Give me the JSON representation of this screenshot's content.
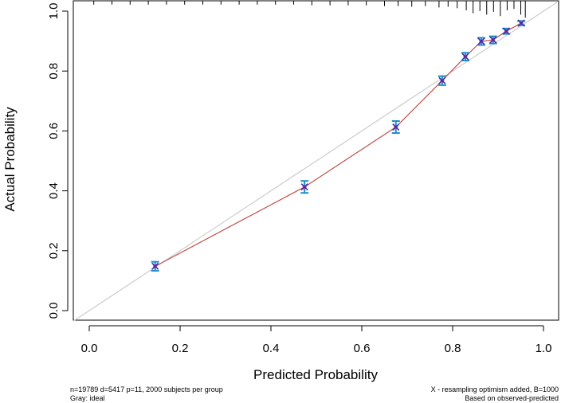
{
  "chart_data": {
    "type": "scatter",
    "title": "",
    "xlabel": "Predicted Probability",
    "ylabel": "Actual Probability",
    "xlim": [
      -0.03,
      1.04
    ],
    "ylim": [
      -0.03,
      1.03
    ],
    "xticks": [
      "0.0",
      "0.2",
      "0.4",
      "0.6",
      "0.8",
      "1.0"
    ],
    "yticks": [
      "0.0",
      "0.2",
      "0.4",
      "0.6",
      "0.8",
      "1.0"
    ],
    "grid": false,
    "ideal_line_color": "#cccccc",
    "curve_color": "#c0504d",
    "errorbar_color": "#1f8fc8",
    "marker_color": "#3a2fb0",
    "points": {
      "x": [
        0.145,
        0.474,
        0.675,
        0.777,
        0.828,
        0.863,
        0.889,
        0.918,
        0.951
      ],
      "y": [
        0.148,
        0.413,
        0.613,
        0.768,
        0.848,
        0.899,
        0.904,
        0.933,
        0.96
      ],
      "lower": [
        0.133,
        0.393,
        0.593,
        0.753,
        0.835,
        0.887,
        0.892,
        0.924,
        0.953
      ],
      "upper": [
        0.163,
        0.433,
        0.633,
        0.783,
        0.861,
        0.911,
        0.916,
        0.942,
        0.967
      ]
    },
    "rug_top": {
      "x": [
        0.01,
        0.05,
        0.09,
        0.13,
        0.17,
        0.21,
        0.25,
        0.29,
        0.33,
        0.37,
        0.41,
        0.45,
        0.49,
        0.53,
        0.57,
        0.61,
        0.65,
        0.68,
        0.71,
        0.74,
        0.77,
        0.79,
        0.81,
        0.83,
        0.845,
        0.86,
        0.875,
        0.89,
        0.905,
        0.92,
        0.935,
        0.95,
        0.96
      ],
      "relative_height": [
        0.1,
        0.1,
        0.1,
        0.1,
        0.1,
        0.1,
        0.1,
        0.1,
        0.1,
        0.1,
        0.1,
        0.1,
        0.15,
        0.15,
        0.15,
        0.15,
        0.2,
        0.2,
        0.25,
        0.2,
        0.3,
        0.25,
        0.35,
        0.5,
        0.7,
        0.55,
        0.8,
        0.6,
        0.9,
        0.5,
        0.4,
        0.8,
        1.0
      ]
    },
    "annotations": {
      "bottom_left_1": "n=19789 d=5417 p=11, 2000 subjects per group",
      "bottom_left_2": "Gray: ideal",
      "bottom_right_1": "X - resampling optimism added, B=1000",
      "bottom_right_2": "Based on observed-predicted"
    }
  }
}
